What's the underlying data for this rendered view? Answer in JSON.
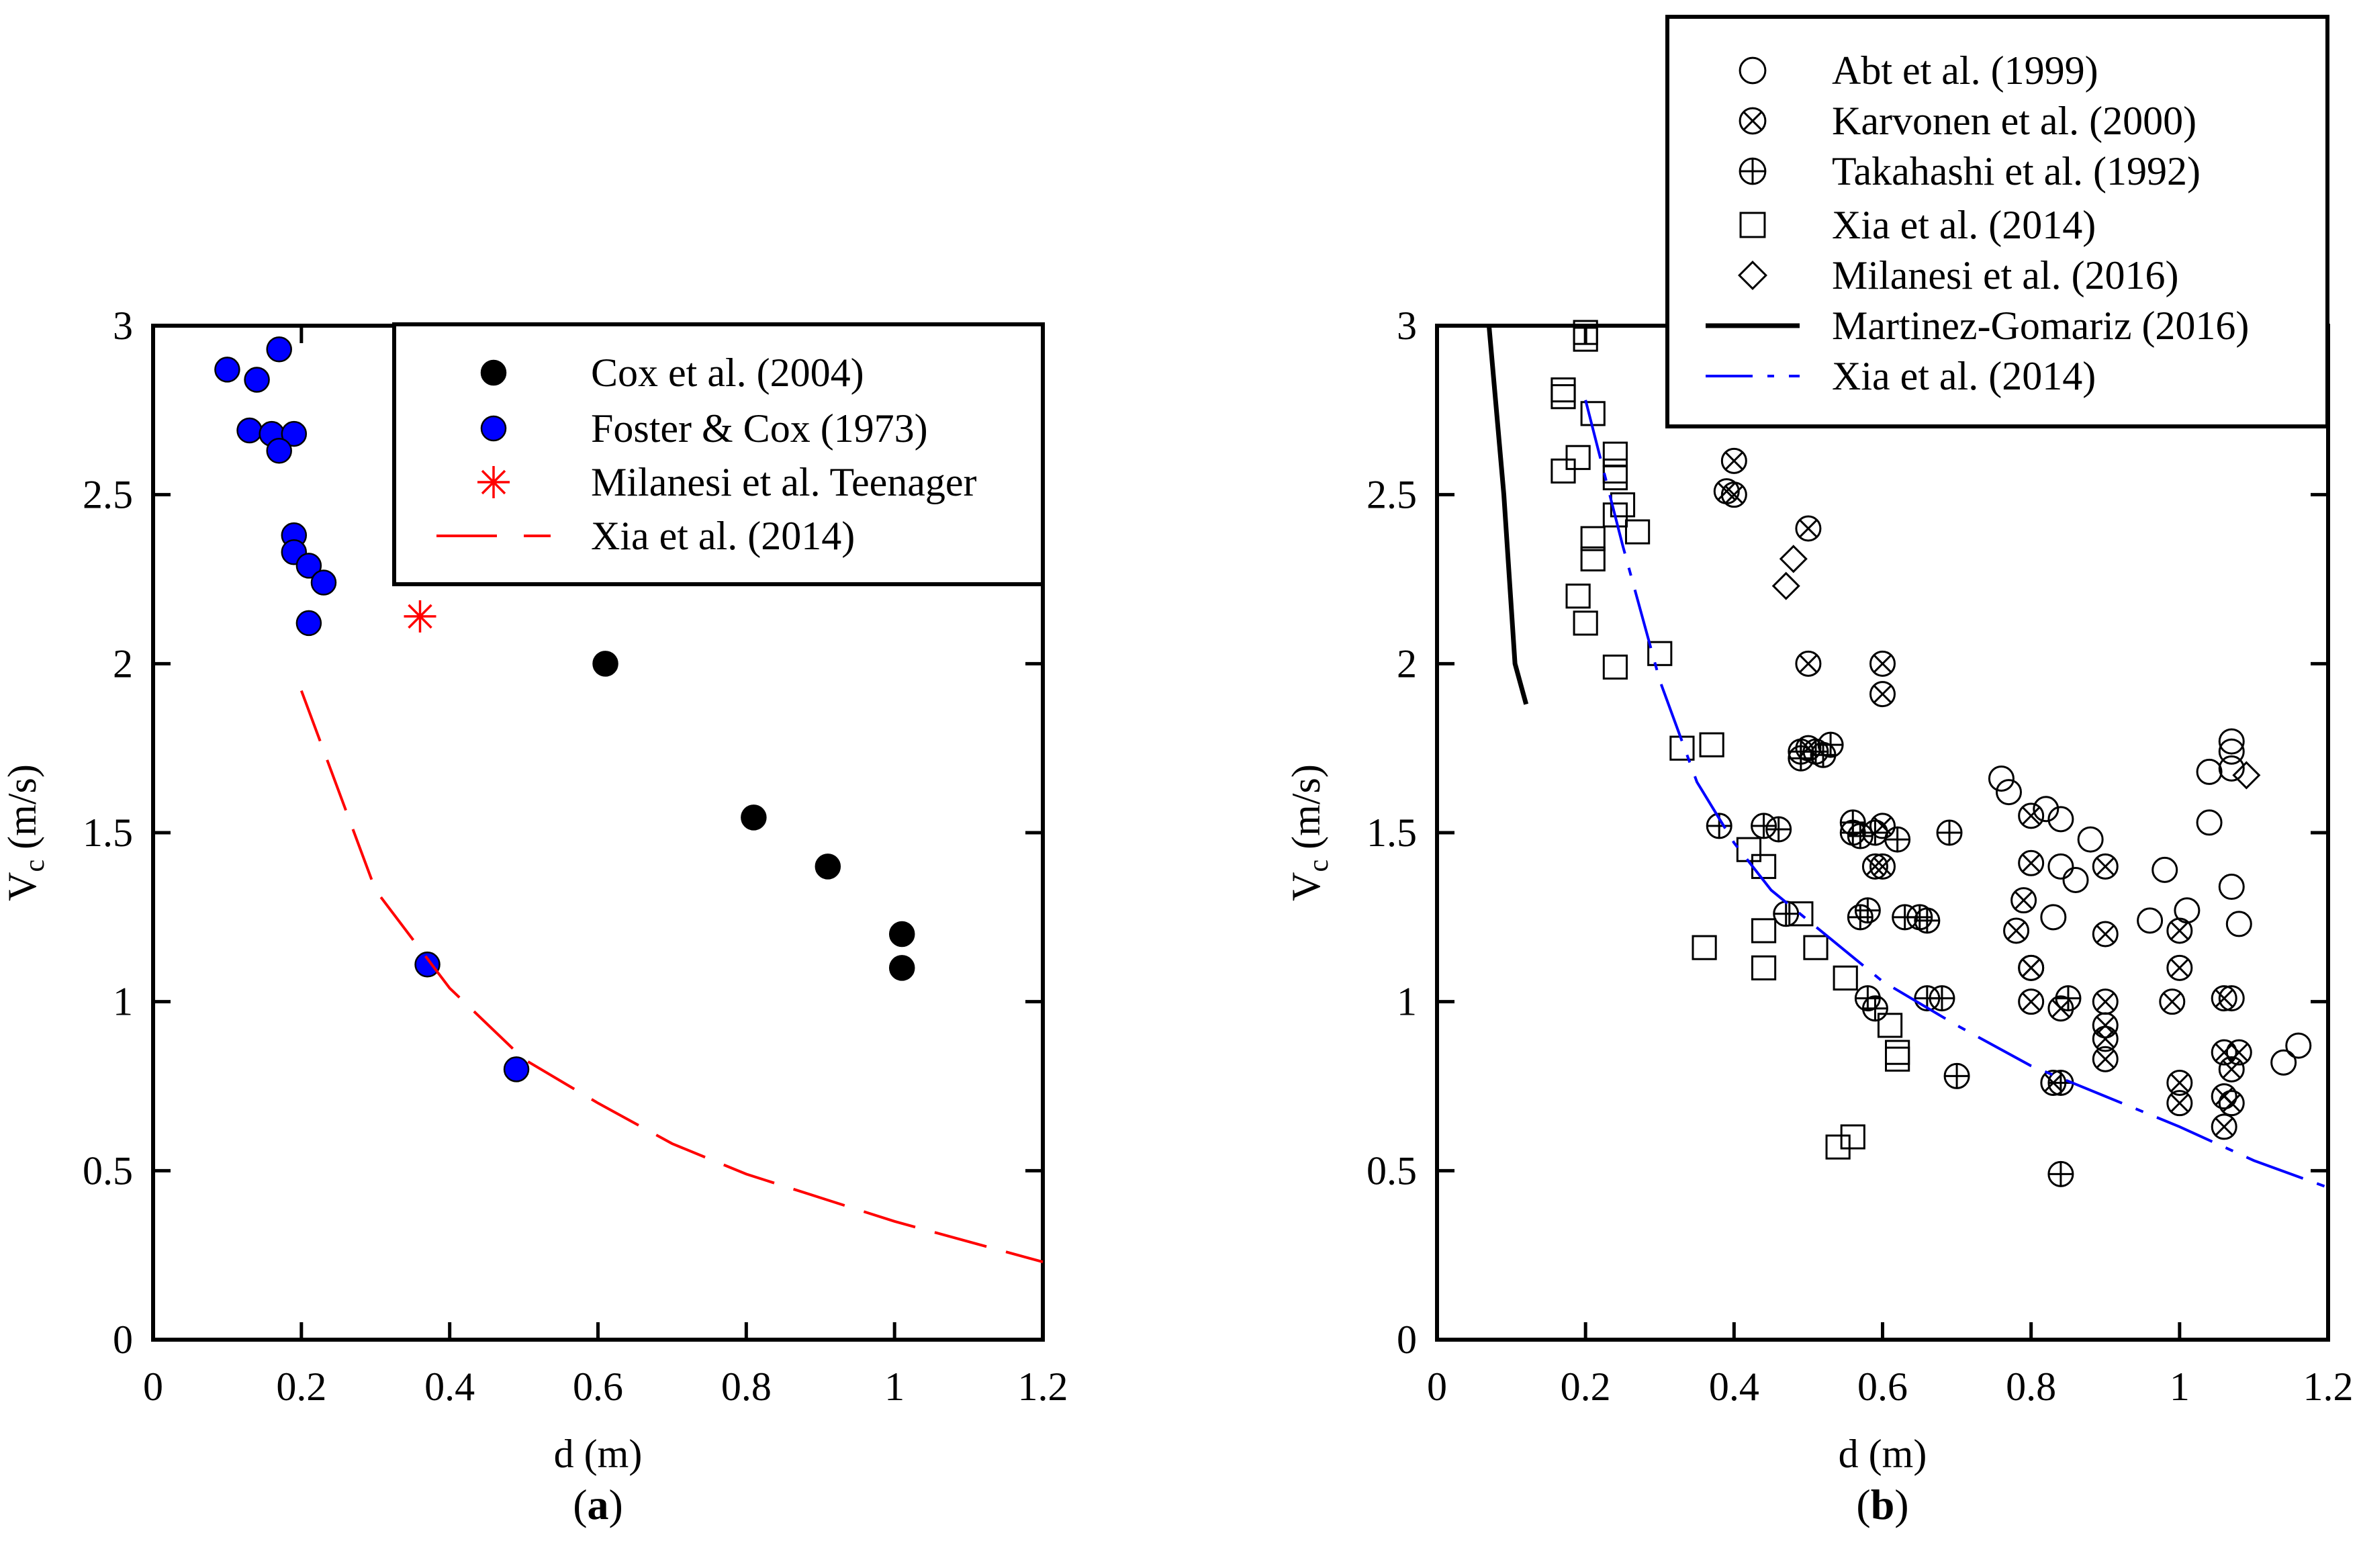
{
  "chart_data": [
    {
      "id": "a",
      "type": "scatter",
      "panel_label": "a",
      "xlabel": "d (m)",
      "ylabel_main": "V",
      "ylabel_sub": "c",
      "ylabel_unit": " (m/s)",
      "xlim": [
        0,
        1.2
      ],
      "ylim": [
        0,
        3
      ],
      "xticks": [
        0,
        0.2,
        0.4,
        0.6,
        0.8,
        1,
        1.2
      ],
      "xtick_labels": [
        "0",
        "0.2",
        "0.4",
        "0.6",
        "0.8",
        "1",
        "1.2"
      ],
      "yticks": [
        0,
        0.5,
        1,
        1.5,
        2,
        2.5,
        3
      ],
      "ytick_labels": [
        "0",
        "0.5",
        "1",
        "1.5",
        "2",
        "2.5",
        "3"
      ],
      "grid": false,
      "legend_position": "top-right",
      "series": [
        {
          "name": "Cox et al. (2004)",
          "marker": "filled-circle",
          "color": "#000000",
          "points": [
            [
              0.61,
              2.0
            ],
            [
              0.81,
              1.545
            ],
            [
              0.91,
              1.4
            ],
            [
              1.01,
              1.2
            ],
            [
              1.01,
              1.1
            ]
          ]
        },
        {
          "name": "Foster & Cox (1973)",
          "marker": "filled-circle",
          "color": "#0000ff",
          "points": [
            [
              0.1,
              2.87
            ],
            [
              0.14,
              2.84
            ],
            [
              0.17,
              2.93
            ],
            [
              0.13,
              2.69
            ],
            [
              0.16,
              2.68
            ],
            [
              0.19,
              2.68
            ],
            [
              0.17,
              2.63
            ],
            [
              0.19,
              2.38
            ],
            [
              0.19,
              2.33
            ],
            [
              0.21,
              2.29
            ],
            [
              0.23,
              2.24
            ],
            [
              0.21,
              2.12
            ],
            [
              0.37,
              1.11
            ],
            [
              0.49,
              0.8
            ]
          ]
        },
        {
          "name": "Milanesi et al. Teenager",
          "marker": "asterisk",
          "color": "#ff0000",
          "points": [
            [
              0.36,
              2.14
            ]
          ]
        },
        {
          "name": "Xia et al. (2014)",
          "marker": "line",
          "line_style": "long-dash",
          "color": "#ff0000",
          "points": [
            [
              0.2,
              1.92
            ],
            [
              0.3,
              1.33
            ],
            [
              0.4,
              1.04
            ],
            [
              0.5,
              0.83
            ],
            [
              0.6,
              0.7
            ],
            [
              0.7,
              0.58
            ],
            [
              0.8,
              0.49
            ],
            [
              0.9,
              0.42
            ],
            [
              1.0,
              0.35
            ],
            [
              1.1,
              0.29
            ],
            [
              1.2,
              0.23
            ]
          ]
        }
      ]
    },
    {
      "id": "b",
      "type": "scatter",
      "panel_label": "b",
      "xlabel": "d (m)",
      "ylabel_main": "V",
      "ylabel_sub": "c",
      "ylabel_unit": " (m/s)",
      "xlim": [
        0,
        1.2
      ],
      "ylim": [
        0,
        3
      ],
      "xticks": [
        0,
        0.2,
        0.4,
        0.6,
        0.8,
        1,
        1.2
      ],
      "xtick_labels": [
        "0",
        "0.2",
        "0.4",
        "0.6",
        "0.8",
        "1",
        "1.2"
      ],
      "yticks": [
        0,
        0.5,
        1,
        1.5,
        2,
        2.5,
        3
      ],
      "ytick_labels": [
        "0",
        "0.5",
        "1",
        "1.5",
        "2",
        "2.5",
        "3"
      ],
      "grid": false,
      "legend_position": "top-right",
      "series": [
        {
          "name": "Abt et al. (1999)",
          "marker": "open-circle",
          "color": "#000000",
          "points": [
            [
              0.76,
              1.66
            ],
            [
              0.77,
              1.62
            ],
            [
              0.82,
              1.57
            ],
            [
              0.84,
              1.54
            ],
            [
              0.88,
              1.48
            ],
            [
              0.86,
              1.36
            ],
            [
              0.84,
              1.4
            ],
            [
              0.83,
              1.25
            ],
            [
              0.96,
              1.24
            ],
            [
              0.98,
              1.39
            ],
            [
              1.01,
              1.27
            ],
            [
              1.04,
              1.68
            ],
            [
              1.04,
              1.53
            ],
            [
              1.07,
              1.77
            ],
            [
              1.07,
              1.74
            ],
            [
              1.07,
              1.69
            ],
            [
              1.07,
              1.34
            ],
            [
              1.08,
              1.23
            ],
            [
              1.07,
              1.01
            ],
            [
              1.14,
              0.82
            ],
            [
              1.16,
              0.87
            ]
          ]
        },
        {
          "name": "Karvonen et al. (2000)",
          "marker": "circle-x",
          "color": "#000000",
          "points": [
            [
              0.4,
              2.6
            ],
            [
              0.4,
              2.5
            ],
            [
              0.39,
              2.51
            ],
            [
              0.5,
              2.4
            ],
            [
              0.5,
              2.0
            ],
            [
              0.6,
              2.0
            ],
            [
              0.6,
              1.91
            ],
            [
              0.5,
              1.75
            ],
            [
              0.6,
              1.52
            ],
            [
              0.59,
              1.4
            ],
            [
              0.6,
              1.4
            ],
            [
              0.8,
              1.55
            ],
            [
              0.8,
              1.41
            ],
            [
              0.79,
              1.3
            ],
            [
              0.78,
              1.21
            ],
            [
              0.8,
              1.1
            ],
            [
              0.8,
              1.1
            ],
            [
              0.8,
              1.0
            ],
            [
              0.84,
              0.98
            ],
            [
              0.83,
              0.76
            ],
            [
              0.9,
              1.4
            ],
            [
              0.9,
              1.2
            ],
            [
              0.9,
              1.0
            ],
            [
              0.9,
              0.93
            ],
            [
              0.9,
              0.89
            ],
            [
              0.9,
              0.83
            ],
            [
              1.0,
              1.21
            ],
            [
              1.0,
              1.1
            ],
            [
              0.99,
              1.0
            ],
            [
              1.0,
              0.76
            ],
            [
              1.0,
              0.7
            ],
            [
              1.06,
              1.01
            ],
            [
              1.06,
              0.85
            ],
            [
              1.07,
              0.8
            ],
            [
              1.08,
              0.85
            ],
            [
              1.06,
              0.72
            ],
            [
              1.07,
              0.7
            ],
            [
              1.06,
              0.63
            ]
          ]
        },
        {
          "name": "Takahashi et al. (1992)",
          "marker": "circle-plus",
          "color": "#000000",
          "points": [
            [
              0.38,
              1.52
            ],
            [
              0.44,
              1.52
            ],
            [
              0.46,
              1.51
            ],
            [
              0.49,
              1.72
            ],
            [
              0.49,
              1.74
            ],
            [
              0.51,
              1.74
            ],
            [
              0.52,
              1.73
            ],
            [
              0.53,
              1.76
            ],
            [
              0.57,
              1.49
            ],
            [
              0.56,
              1.5
            ],
            [
              0.56,
              1.53
            ],
            [
              0.59,
              1.5
            ],
            [
              0.62,
              1.48
            ],
            [
              0.69,
              1.5
            ],
            [
              0.47,
              1.26
            ],
            [
              0.57,
              1.25
            ],
            [
              0.58,
              1.27
            ],
            [
              0.63,
              1.25
            ],
            [
              0.65,
              1.25
            ],
            [
              0.66,
              1.24
            ],
            [
              0.58,
              1.01
            ],
            [
              0.59,
              0.98
            ],
            [
              0.66,
              1.01
            ],
            [
              0.68,
              1.01
            ],
            [
              0.7,
              0.78
            ],
            [
              0.84,
              0.76
            ],
            [
              0.85,
              1.01
            ],
            [
              0.84,
              0.49
            ]
          ]
        },
        {
          "name": "Xia et al. (2014)",
          "marker": "open-square",
          "color": "#000000",
          "points": [
            [
              0.2,
              2.98
            ],
            [
              0.2,
              2.96
            ],
            [
              0.17,
              2.81
            ],
            [
              0.17,
              2.79
            ],
            [
              0.21,
              2.74
            ],
            [
              0.17,
              2.57
            ],
            [
              0.19,
              2.61
            ],
            [
              0.24,
              2.62
            ],
            [
              0.24,
              2.57
            ],
            [
              0.24,
              2.55
            ],
            [
              0.25,
              2.47
            ],
            [
              0.24,
              2.44
            ],
            [
              0.27,
              2.39
            ],
            [
              0.21,
              2.37
            ],
            [
              0.21,
              2.31
            ],
            [
              0.19,
              2.2
            ],
            [
              0.2,
              2.12
            ],
            [
              0.3,
              2.03
            ],
            [
              0.24,
              1.99
            ],
            [
              0.33,
              1.75
            ],
            [
              0.37,
              1.76
            ],
            [
              0.42,
              1.45
            ],
            [
              0.44,
              1.4
            ],
            [
              0.36,
              1.16
            ],
            [
              0.44,
              1.21
            ],
            [
              0.44,
              1.1
            ],
            [
              0.49,
              1.26
            ],
            [
              0.51,
              1.16
            ],
            [
              0.55,
              1.07
            ],
            [
              0.61,
              0.93
            ],
            [
              0.62,
              0.85
            ],
            [
              0.62,
              0.83
            ],
            [
              0.54,
              0.57
            ],
            [
              0.56,
              0.6
            ]
          ]
        },
        {
          "name": "Milanesi et al. (2016)",
          "marker": "open-diamond",
          "color": "#000000",
          "points": [
            [
              0.48,
              2.31
            ],
            [
              0.47,
              2.23
            ],
            [
              1.09,
              1.67
            ]
          ]
        },
        {
          "name": "Martinez-Gomariz  (2016)",
          "marker": "line",
          "line_style": "solid",
          "color": "#000000",
          "points": [
            [
              0.07,
              3.0
            ],
            [
              0.09,
              2.5
            ],
            [
              0.105,
              2.0
            ],
            [
              0.12,
              1.88
            ]
          ]
        },
        {
          "name": "Xia et al. (2014)",
          "marker": "line",
          "line_style": "dash-dot",
          "color": "#0000ff",
          "points": [
            [
              0.2,
              2.78
            ],
            [
              0.25,
              2.35
            ],
            [
              0.3,
              1.95
            ],
            [
              0.35,
              1.65
            ],
            [
              0.4,
              1.47
            ],
            [
              0.45,
              1.33
            ],
            [
              0.5,
              1.24
            ],
            [
              0.55,
              1.15
            ],
            [
              0.6,
              1.06
            ],
            [
              0.7,
              0.93
            ],
            [
              0.8,
              0.81
            ],
            [
              0.9,
              0.72
            ],
            [
              1.0,
              0.63
            ],
            [
              1.1,
              0.53
            ],
            [
              1.2,
              0.45
            ]
          ]
        }
      ]
    }
  ]
}
